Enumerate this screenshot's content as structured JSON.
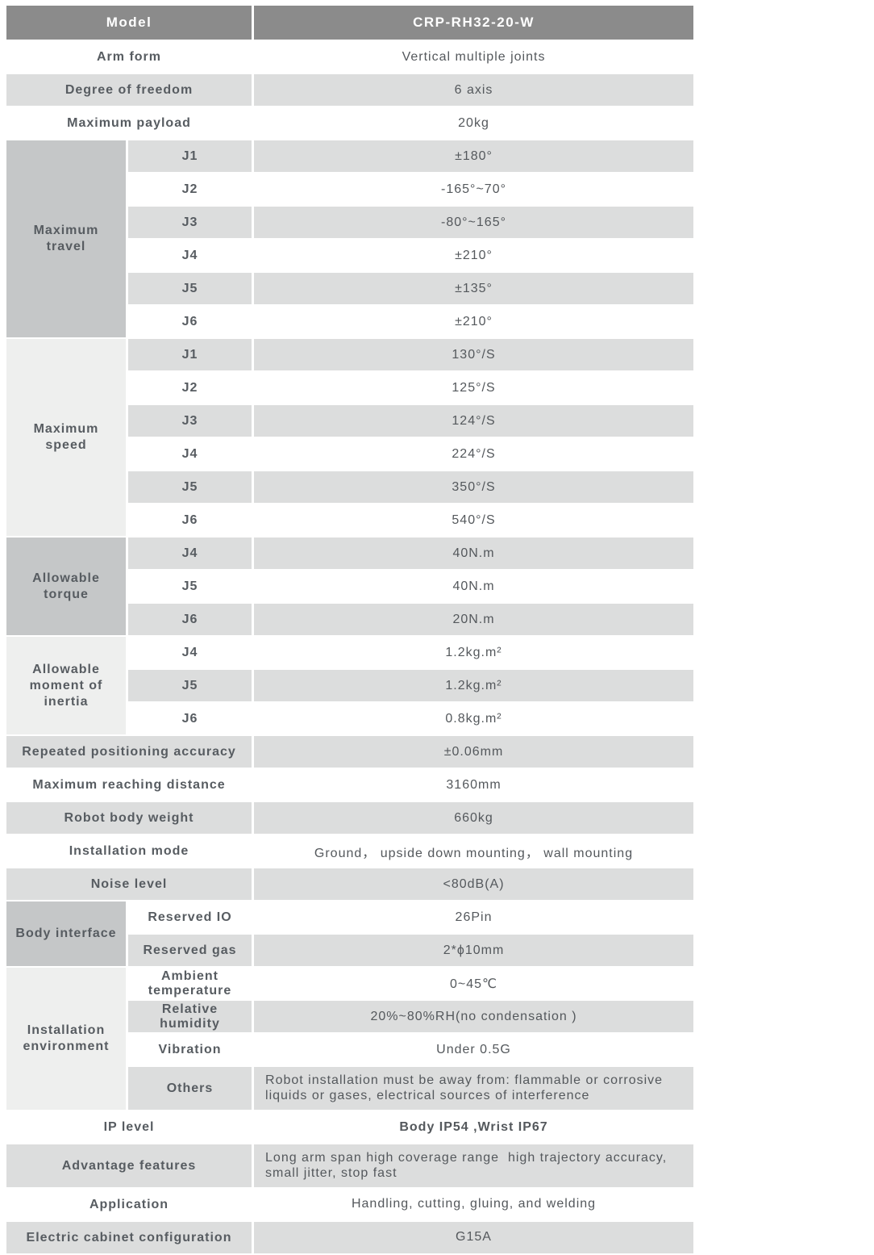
{
  "colors": {
    "header_bg": "#8b8b8b",
    "header_text": "#ffffff",
    "row_gray": "#dcdddd",
    "row_white": "#ffffff",
    "group_dark": "#c5c7c8",
    "group_light": "#eeefee",
    "label_text": "#575c61",
    "value_text": "#54585c"
  },
  "header": {
    "label": "Model",
    "value": "CRP-RH32-20-W"
  },
  "sections": [
    {
      "type": "simple",
      "label": "Arm form",
      "value": "Vertical multiple joints",
      "shade": "white"
    },
    {
      "type": "simple",
      "label": "Degree of freedom",
      "value": "6 axis",
      "shade": "gray"
    },
    {
      "type": "simple",
      "label": "Maximum payload",
      "value": "20kg",
      "shade": "white"
    },
    {
      "type": "group",
      "label": "Maximum travel",
      "tone": "dark",
      "rows": [
        {
          "sub": "J1",
          "value": "±180°",
          "shade": "gray"
        },
        {
          "sub": "J2",
          "value": "-165°~70°",
          "shade": "white"
        },
        {
          "sub": "J3",
          "value": "-80°~165°",
          "shade": "gray"
        },
        {
          "sub": "J4",
          "value": "±210°",
          "shade": "white"
        },
        {
          "sub": "J5",
          "value": "±135°",
          "shade": "gray"
        },
        {
          "sub": "J6",
          "value": "±210°",
          "shade": "white"
        }
      ]
    },
    {
      "type": "group",
      "label": "Maximum speed",
      "tone": "light",
      "rows": [
        {
          "sub": "J1",
          "value": "130°/S",
          "shade": "gray"
        },
        {
          "sub": "J2",
          "value": "125°/S",
          "shade": "white"
        },
        {
          "sub": "J3",
          "value": "124°/S",
          "shade": "gray"
        },
        {
          "sub": "J4",
          "value": "224°/S",
          "shade": "white"
        },
        {
          "sub": "J5",
          "value": "350°/S",
          "shade": "gray"
        },
        {
          "sub": "J6",
          "value": "540°/S",
          "shade": "white"
        }
      ]
    },
    {
      "type": "group",
      "label": "Allowable torque",
      "tone": "dark",
      "rows": [
        {
          "sub": "J4",
          "value": "40N.m",
          "shade": "gray"
        },
        {
          "sub": "J5",
          "value": "40N.m",
          "shade": "white"
        },
        {
          "sub": "J6",
          "value": "20N.m",
          "shade": "gray"
        }
      ]
    },
    {
      "type": "group",
      "label": "Allowable moment of inertia",
      "tone": "light",
      "rows": [
        {
          "sub": "J4",
          "value": "1.2kg.m²",
          "shade": "white"
        },
        {
          "sub": "J5",
          "value": "1.2kg.m²",
          "shade": "gray"
        },
        {
          "sub": "J6",
          "value": "0.8kg.m²",
          "shade": "white"
        }
      ]
    },
    {
      "type": "simple",
      "label": "Repeated positioning accuracy",
      "value": "±0.06mm",
      "shade": "gray"
    },
    {
      "type": "simple",
      "label": "Maximum reaching distance",
      "value": "3160mm",
      "shade": "white"
    },
    {
      "type": "simple",
      "label": "Robot body weight",
      "value": "660kg",
      "shade": "gray"
    },
    {
      "type": "simple",
      "label": "Installation mode",
      "value": "Ground， upside down mounting， wall mounting",
      "shade": "white"
    },
    {
      "type": "simple",
      "label": "Noise level",
      "value": "<80dB(A)",
      "shade": "gray"
    },
    {
      "type": "group",
      "label": "Body interface",
      "tone": "dark",
      "rows": [
        {
          "sub": "Reserved IO",
          "value": "26Pin",
          "shade": "white"
        },
        {
          "sub": "Reserved gas",
          "value": "2*ϕ10mm",
          "shade": "gray"
        }
      ]
    },
    {
      "type": "group",
      "label": "Installation environment",
      "tone": "light",
      "rows": [
        {
          "sub": "Ambient temperature",
          "value": "0~45℃",
          "shade": "white"
        },
        {
          "sub": "Relative humidity",
          "value": "20%~80%RH(no condensation )",
          "shade": "gray"
        },
        {
          "sub": "Vibration",
          "value": "Under 0.5G",
          "shade": "white"
        },
        {
          "sub": "Others",
          "value": "Robot installation must be away from: flammable or corrosive liquids or gases, electrical sources of interference",
          "shade": "gray",
          "multiline": true
        }
      ]
    },
    {
      "type": "simple",
      "label": "IP level",
      "value": "Body IP54 ,Wrist IP67",
      "shade": "white",
      "strong": true
    },
    {
      "type": "simple",
      "label": "Advantage features",
      "value": "Long arm span high coverage range  high trajectory accuracy, small jitter, stop fast",
      "shade": "gray",
      "multiline": true
    },
    {
      "type": "simple",
      "label": "Application",
      "value": "Handling, cutting, gluing, and welding",
      "shade": "white"
    },
    {
      "type": "simple",
      "label": "Electric cabinet configuration",
      "value": "G15A",
      "shade": "gray"
    }
  ]
}
